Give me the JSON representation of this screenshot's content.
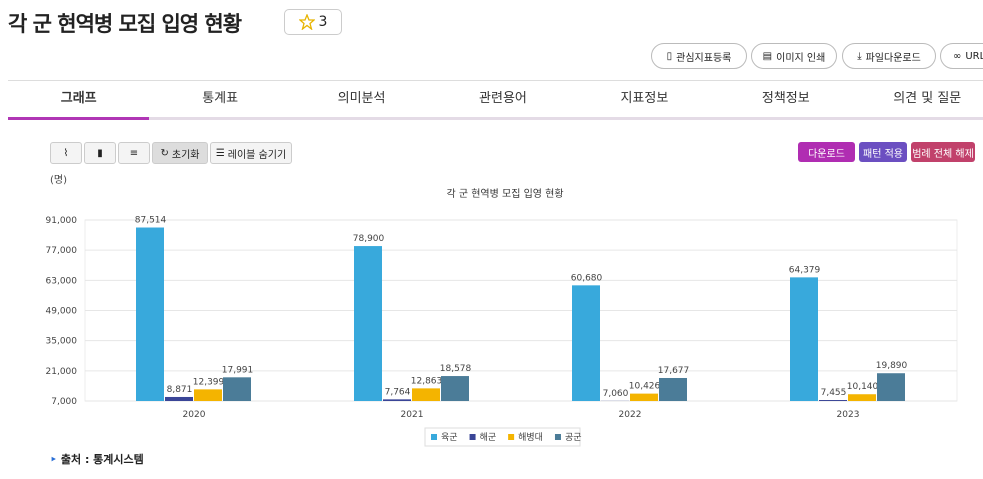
{
  "header": {
    "title": "각 군 현역병 모집 입영 현황",
    "star_count": 3
  },
  "actions": [
    "관심지표등록",
    "이미지 인쇄",
    "파일다운로드",
    "URL"
  ],
  "tabs": [
    "그래프",
    "통계표",
    "의미분석",
    "관련용어",
    "지표정보",
    "정책정보",
    "의견 및 질문"
  ],
  "toolbar": {
    "reset": "초기화",
    "hide_labels": "레이블 숨기기",
    "download": "다운로드",
    "pattern": "패턴 적용",
    "legend_off": "범례 전체 해제"
  },
  "chart_data": {
    "type": "bar",
    "title": "각 군 현역병 모집 입영 현황",
    "y_unit": "(명)",
    "categories": [
      "2020",
      "2021",
      "2022",
      "2023"
    ],
    "series": [
      {
        "name": "육군",
        "color": "#38a9dc",
        "values": [
          87514,
          78900,
          60680,
          64379
        ],
        "value_labels": [
          "87,514",
          "78,900",
          "60,680",
          "64,379"
        ]
      },
      {
        "name": "해군",
        "color": "#3a4597",
        "values": [
          8871,
          7764,
          7060,
          7455
        ],
        "value_labels": [
          "8,871",
          "7,764",
          "7,060",
          "7,455"
        ]
      },
      {
        "name": "해병대",
        "color": "#f4b400",
        "values": [
          12399,
          12863,
          10426,
          10140
        ],
        "value_labels": [
          "12,399",
          "12,863",
          "10,426",
          "10,140"
        ]
      },
      {
        "name": "공군",
        "color": "#4b7c98",
        "values": [
          17991,
          18578,
          17677,
          19890
        ],
        "value_labels": [
          "17,991",
          "18,578",
          "17,677",
          "19,890"
        ]
      }
    ],
    "ylim": [
      7000,
      91000
    ],
    "yticks": [
      {
        "value": 7000,
        "label": "7,000"
      },
      {
        "value": 21000,
        "label": "21,000"
      },
      {
        "value": 35000,
        "label": "35,000"
      },
      {
        "value": 49000,
        "label": "49,000"
      },
      {
        "value": 63000,
        "label": "63,000"
      },
      {
        "value": 77000,
        "label": "77,000"
      },
      {
        "value": 91000,
        "label": "91,000"
      }
    ],
    "grid": true
  },
  "source": "출처 : 통계시스템"
}
